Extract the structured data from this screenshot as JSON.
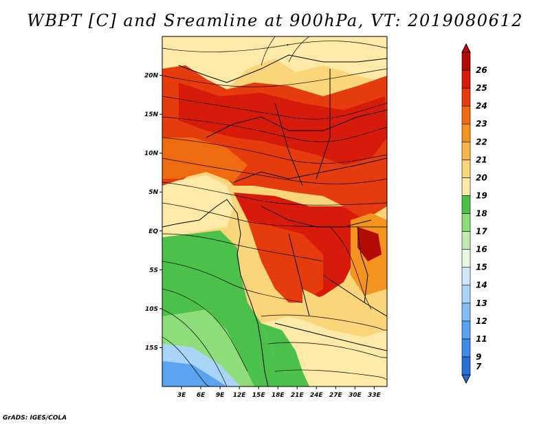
{
  "title": "WBPT [C] and Sreamline at 900hPa, VT: 2019080612",
  "credit": "GrADS: IGES/COLA",
  "map": {
    "lat_ticks": [
      "20N",
      "15N",
      "10N",
      "5N",
      "EQ",
      "5S",
      "10S",
      "15S"
    ],
    "lon_ticks": [
      "3E",
      "6E",
      "9E",
      "12E",
      "15E",
      "18E",
      "21E",
      "24E",
      "27E",
      "30E",
      "33E"
    ],
    "lat_values": [
      20,
      15,
      10,
      5,
      0,
      -5,
      -10,
      -15
    ],
    "lon_values": [
      3,
      6,
      9,
      12,
      15,
      18,
      21,
      24,
      27,
      30,
      33
    ],
    "lon_range": [
      0,
      35
    ],
    "lat_range": [
      -20,
      25
    ]
  },
  "colorbar": {
    "labels": [
      "7",
      "9",
      "11",
      "12",
      "13",
      "14",
      "15",
      "16",
      "17",
      "18",
      "19",
      "20",
      "21",
      "22",
      "23",
      "24",
      "25",
      "26"
    ],
    "colors": [
      "#2a6fd6",
      "#3f8be8",
      "#5aa3f0",
      "#82bdf5",
      "#a9d3f7",
      "#cfe6fa",
      "#e8f7e4",
      "#c2eab3",
      "#8fdc7a",
      "#4cc14a",
      "#fde9a8",
      "#fbd57a",
      "#f8b54c",
      "#f5931f",
      "#f06a10",
      "#e63b0c",
      "#d81a0a",
      "#b30a05"
    ]
  }
}
